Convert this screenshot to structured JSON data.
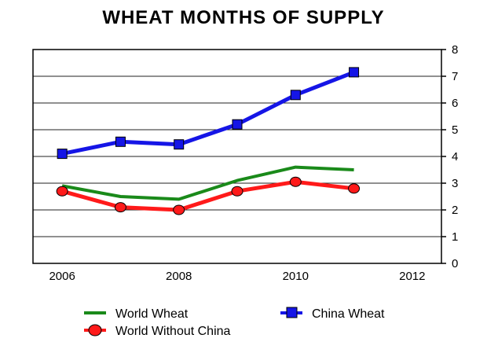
{
  "chart_data": {
    "type": "line",
    "title": "WHEAT MONTHS OF SUPPLY",
    "xlabel": "",
    "ylabel": "",
    "x": [
      2006,
      2007,
      2008,
      2009,
      2010,
      2011
    ],
    "x_ticks": [
      "2006",
      "2008",
      "2010",
      "2012"
    ],
    "xlim": [
      2005.5,
      2012.5
    ],
    "ylim": [
      0,
      8
    ],
    "y_ticks": [
      "0",
      "1",
      "2",
      "3",
      "4",
      "5",
      "6",
      "7",
      "8"
    ],
    "y_axis_side": "right",
    "grid": "horizontal",
    "legend_position": "bottom",
    "series": [
      {
        "name": "World Wheat",
        "color": "#1a8a1a",
        "marker": "none",
        "values": [
          2.9,
          2.5,
          2.4,
          3.1,
          3.6,
          3.5
        ]
      },
      {
        "name": "China Wheat",
        "color": "#1515e6",
        "marker": "square",
        "values": [
          4.1,
          4.55,
          4.45,
          5.2,
          6.3,
          7.15
        ]
      },
      {
        "name": "World Without China",
        "color": "#ff1a1a",
        "marker": "circle",
        "values": [
          2.7,
          2.1,
          2.0,
          2.7,
          3.05,
          2.8
        ]
      }
    ]
  }
}
